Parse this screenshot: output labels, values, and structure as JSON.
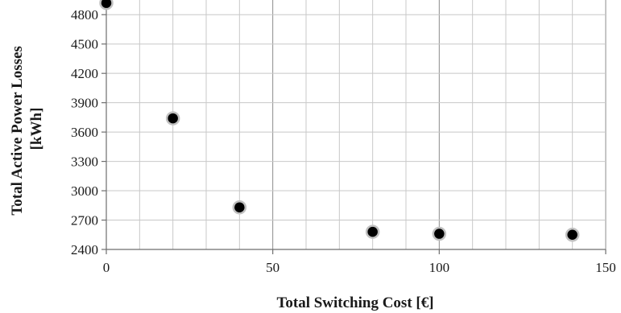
{
  "chart_data": {
    "type": "scatter",
    "title": "",
    "xlabel": "Total Switching Cost [€]",
    "ylabel_lines": [
      "Total Active Power Losses",
      "[kWh]"
    ],
    "xlim": [
      0,
      150
    ],
    "ylim": [
      2400,
      4950
    ],
    "x_major_ticks": [
      0,
      50,
      100,
      150
    ],
    "x_minor_step": 10,
    "y_ticks": [
      2400,
      2700,
      3000,
      3300,
      3600,
      3900,
      4200,
      4500,
      4800
    ],
    "grid": true,
    "legend": "none",
    "marker_color": "#000000",
    "marker_edge_color": "#c0c0c0",
    "points": [
      {
        "x": 0,
        "y": 4920
      },
      {
        "x": 20,
        "y": 3740
      },
      {
        "x": 40,
        "y": 2830
      },
      {
        "x": 80,
        "y": 2580
      },
      {
        "x": 100,
        "y": 2560
      },
      {
        "x": 140,
        "y": 2550
      }
    ]
  }
}
